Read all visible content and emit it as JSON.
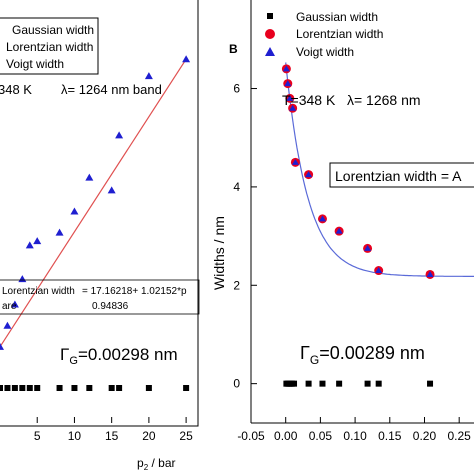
{
  "chart_data": [
    {
      "type": "scatter",
      "panel_label": "",
      "xlabel": "p₂ / bar",
      "xlabel_main": "p",
      "xlabel_sub": "2",
      "xlabel_rest": " / bar",
      "xlim": [
        0,
        27
      ],
      "xticks": [
        5,
        10,
        15,
        20,
        25
      ],
      "xtick_labels": [
        "5",
        "10",
        "15",
        "20",
        "25"
      ],
      "ylim": [
        0,
        1
      ],
      "legend": [
        {
          "label": "Gaussian width",
          "marker": "square",
          "color": "#000000"
        },
        {
          "label": "Lorentzian width",
          "marker": "circle",
          "color": "#e8001e"
        },
        {
          "label": "Voigt width",
          "marker": "triangle",
          "color": "#1f1fd0"
        }
      ],
      "annotation_condition": "348 K",
      "annotation_band": "λ= 1264 nm band",
      "fit_box_line1_label": "Lorentzian width",
      "fit_box_line1_value": "= 17.16218+ 1.02152*p",
      "fit_box_line2_label": "are",
      "fit_box_line2_value": "0.94836",
      "gamma_label_symbol": "Γ",
      "gamma_label_sub": "G",
      "gamma_label_value": "=0.00298 nm",
      "series": [
        {
          "name": "Voigt width",
          "x": [
            0,
            1,
            2,
            3,
            4,
            5,
            8,
            10,
            12,
            15,
            16,
            20,
            25
          ],
          "y": [
            0.18,
            0.23,
            0.28,
            0.34,
            0.42,
            0.43,
            0.45,
            0.5,
            0.58,
            0.55,
            0.68,
            0.82,
            0.86
          ]
        },
        {
          "name": "Gaussian width",
          "x": [
            0,
            1,
            2,
            3,
            4,
            5,
            8,
            10,
            12,
            15,
            16,
            20,
            25
          ],
          "y": [
            0.03,
            0.03,
            0.03,
            0.03,
            0.03,
            0.03,
            0.03,
            0.03,
            0.03,
            0.03,
            0.03,
            0.03,
            0.03
          ]
        }
      ],
      "fit_line": {
        "x": [
          0,
          25
        ],
        "y": [
          0.18,
          0.86
        ],
        "color": "#e05050"
      }
    },
    {
      "type": "scatter",
      "panel_label": "B",
      "xlabel": "",
      "ylabel": "Widths / nm",
      "xlim": [
        -0.05,
        0.28
      ],
      "ylim": [
        -0.8,
        7.8
      ],
      "xticks": [
        -0.05,
        0.0,
        0.05,
        0.1,
        0.15,
        0.2,
        0.25
      ],
      "xtick_labels": [
        "-0.05",
        "0.00",
        "0.05",
        "0.10",
        "0.15",
        "0.20",
        "0.25"
      ],
      "yticks": [
        0,
        2,
        4,
        6
      ],
      "ytick_labels": [
        "0",
        "2",
        "4",
        "6"
      ],
      "legend": [
        {
          "label": "Gaussian width",
          "marker": "square",
          "color": "#000000"
        },
        {
          "label": "Lorentzian width",
          "marker": "circle",
          "color": "#e8001e"
        },
        {
          "label": "Voigt width",
          "marker": "triangle",
          "color": "#1f1fd0"
        }
      ],
      "annotation": "T=348 K   λ= 1268 nm",
      "fit_box_label": "Lorentzian width  = A",
      "gamma_label_symbol": "Γ",
      "gamma_label_sub": "G",
      "gamma_label_value": "=0.00289 nm",
      "series": [
        {
          "name": "Lorentzian width",
          "x": [
            0.001,
            0.003,
            0.006,
            0.01,
            0.014,
            0.033,
            0.053,
            0.077,
            0.118,
            0.134,
            0.208
          ],
          "y": [
            6.4,
            6.1,
            5.8,
            5.6,
            4.5,
            4.25,
            3.35,
            3.1,
            2.75,
            2.3,
            2.22
          ]
        },
        {
          "name": "Voigt width",
          "x": [
            0.001,
            0.003,
            0.006,
            0.01,
            0.014,
            0.033,
            0.053,
            0.077,
            0.118,
            0.134,
            0.208
          ],
          "y": [
            6.4,
            6.1,
            5.8,
            5.6,
            4.5,
            4.25,
            3.35,
            3.1,
            2.75,
            2.3,
            2.22
          ]
        },
        {
          "name": "Gaussian width",
          "x": [
            0.001,
            0.003,
            0.005,
            0.007,
            0.009,
            0.012,
            0.033,
            0.053,
            0.077,
            0.118,
            0.134,
            0.208
          ],
          "y": [
            0,
            0,
            0,
            0,
            0,
            0,
            0,
            0,
            0,
            0,
            0,
            0
          ]
        }
      ],
      "fit_curve": {
        "asymptote": 2.18,
        "amplitude": 4.35,
        "decay": 0.032,
        "x_start": 0.0,
        "x_end": 0.28,
        "color": "#5a6ad8"
      }
    }
  ]
}
